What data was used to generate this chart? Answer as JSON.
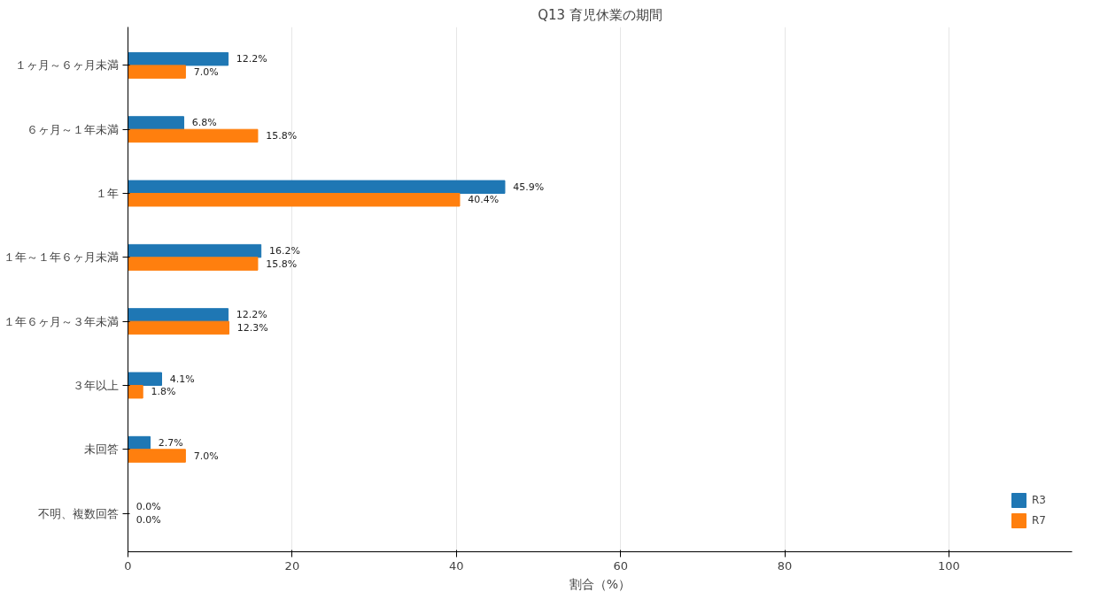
{
  "chart_data": {
    "type": "bar",
    "orientation": "horizontal",
    "title": "Q13 育児休業の期間",
    "xlabel": "割合（%）",
    "categories": [
      "１ヶ月～６ヶ月未満",
      "６ヶ月～１年未満",
      "１年",
      "１年～１年６ヶ月未満",
      "１年６ヶ月～３年未満",
      "３年以上",
      "未回答",
      "不明、複数回答"
    ],
    "series": [
      {
        "name": "R3",
        "color": "#1f77b4",
        "values": [
          12.2,
          6.8,
          45.9,
          16.2,
          12.2,
          4.1,
          2.7,
          0.0
        ],
        "value_labels": [
          "12.2%",
          "6.8%",
          "45.9%",
          "16.2%",
          "12.2%",
          "4.1%",
          "2.7%",
          "0.0%"
        ]
      },
      {
        "name": "R7",
        "color": "#ff7f0e",
        "values": [
          7.0,
          15.8,
          40.4,
          15.8,
          12.3,
          1.8,
          7.0,
          0.0
        ],
        "value_labels": [
          "7.0%",
          "15.8%",
          "40.4%",
          "15.8%",
          "12.3%",
          "1.8%",
          "7.0%",
          "0.0%"
        ]
      }
    ],
    "xlim": [
      0,
      115
    ],
    "xticks": [
      0,
      20,
      40,
      60,
      80,
      100
    ],
    "grid": "x",
    "legend": "bottom right"
  }
}
